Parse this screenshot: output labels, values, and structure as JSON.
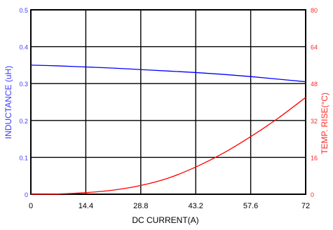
{
  "chart_data": {
    "type": "line",
    "title": "",
    "xlabel": "DC CURRENT(A)",
    "ylabel": "INDUCTANCE (uH)",
    "y2label": "TEMP. RISE(°C)",
    "x_ticks": [
      "0",
      "14.4",
      "28.8",
      "43.2",
      "57.6",
      "72"
    ],
    "y_ticks": [
      "0",
      "0.1",
      "0.2",
      "0.3",
      "0.4",
      "0.5"
    ],
    "y2_ticks": [
      "0",
      "16",
      "32",
      "48",
      "64",
      "80"
    ],
    "xlim": [
      0,
      72
    ],
    "ylim": [
      0,
      0.5
    ],
    "y2lim": [
      0,
      80
    ],
    "grid": true,
    "series": [
      {
        "name": "",
        "axis": "left",
        "color": "#0000ff",
        "x": [
          0,
          7.2,
          14.4,
          21.6,
          28.8,
          36,
          43.2,
          50.4,
          57.6,
          64.8,
          72
        ],
        "y": [
          0.35,
          0.348,
          0.345,
          0.342,
          0.338,
          0.334,
          0.33,
          0.325,
          0.319,
          0.312,
          0.305
        ]
      },
      {
        "name": "",
        "axis": "right",
        "color": "#ff0000",
        "x": [
          0,
          7.2,
          14.4,
          21.6,
          28.8,
          36,
          43.2,
          50.4,
          57.6,
          64.8,
          72
        ],
        "y": [
          0,
          0.1,
          0.7,
          1.8,
          3.8,
          7,
          11.8,
          17.8,
          25,
          33,
          42
        ]
      }
    ]
  },
  "colors": {
    "left_axis": "#3b3bff",
    "right_axis": "#ff2a2a",
    "grid": "#000000",
    "tick_text": "#000000"
  }
}
